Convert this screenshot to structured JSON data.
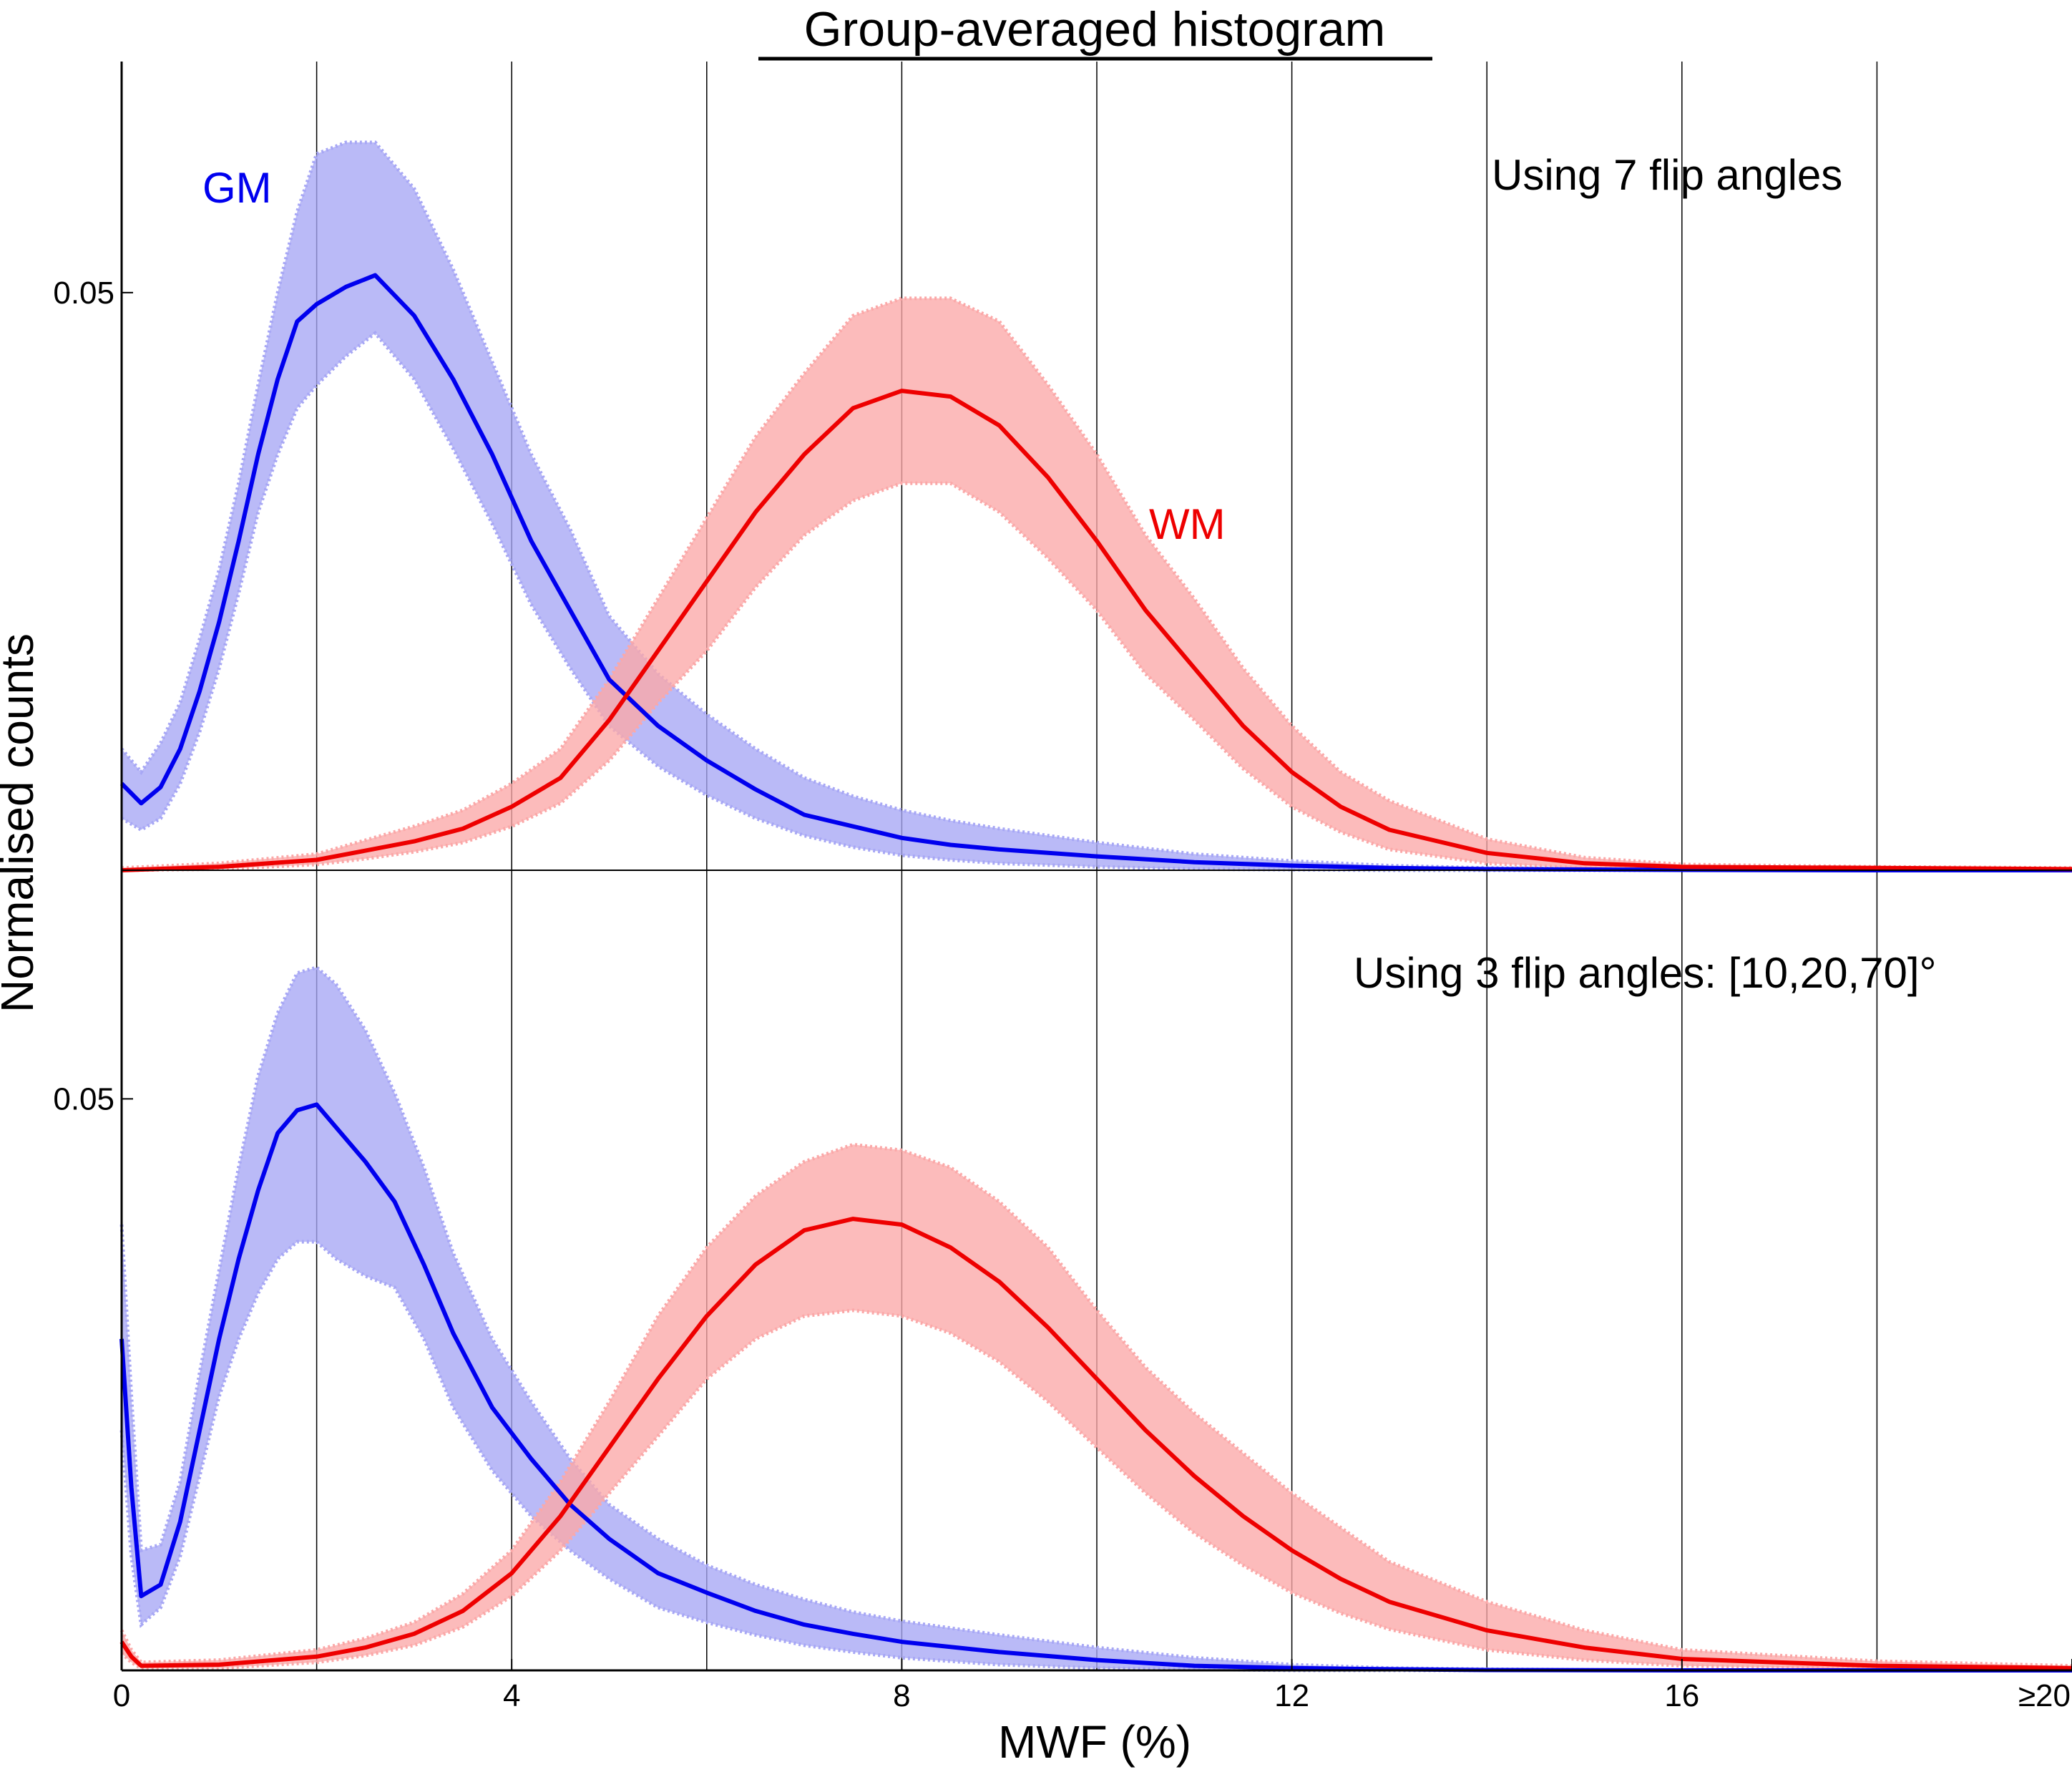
{
  "chart_data": {
    "type": "area",
    "title": "Group-averaged histogram",
    "xlabel": "MWF (%)",
    "ylabel": "Normalised counts",
    "xlim": [
      0,
      20
    ],
    "x_ticks": [
      {
        "value": 0,
        "label": "0"
      },
      {
        "value": 4,
        "label": "4"
      },
      {
        "value": 8,
        "label": "8"
      },
      {
        "value": 12,
        "label": "12"
      },
      {
        "value": 16,
        "label": "16"
      },
      {
        "value": 20,
        "label": "≥20"
      }
    ],
    "x_gridlines": [
      2,
      4,
      6,
      8,
      10,
      12,
      14,
      16,
      18
    ],
    "colors": {
      "GM": "#0000ee",
      "GM_band": "#a7a7f5",
      "WM": "#ee0000",
      "WM_band": "#fba8a8"
    },
    "panels": [
      {
        "annotation": "Using 7 flip angles",
        "ylim": [
          0,
          0.07
        ],
        "y_ticks": [
          {
            "value": 0.05,
            "label": "0.05"
          }
        ],
        "series": [
          {
            "name": "GM",
            "color": "#0000ee",
            "x": [
              0,
              0.2,
              0.4,
              0.6,
              0.8,
              1.0,
              1.2,
              1.4,
              1.6,
              1.8,
              2.0,
              2.3,
              2.6,
              3.0,
              3.4,
              3.8,
              4.2,
              4.6,
              5.0,
              5.5,
              6.0,
              6.5,
              7.0,
              7.5,
              8.0,
              8.5,
              9.0,
              10,
              11,
              12,
              13,
              14,
              16,
              18,
              20
            ],
            "values": [
              0.0075,
              0.0058,
              0.0072,
              0.0105,
              0.0155,
              0.0215,
              0.0285,
              0.036,
              0.0425,
              0.0475,
              0.049,
              0.0505,
              0.0515,
              0.048,
              0.0425,
              0.036,
              0.0285,
              0.0225,
              0.0165,
              0.0125,
              0.0095,
              0.007,
              0.0048,
              0.0038,
              0.0028,
              0.0022,
              0.0018,
              0.0012,
              0.0007,
              0.0004,
              0.0002,
              0.0001,
              3e-05,
              0.0,
              0.0
            ],
            "lower": [
              0.0045,
              0.0035,
              0.0045,
              0.0075,
              0.012,
              0.0175,
              0.024,
              0.031,
              0.036,
              0.04,
              0.042,
              0.0445,
              0.0465,
              0.0425,
              0.0365,
              0.03,
              0.023,
              0.0175,
              0.0125,
              0.009,
              0.0065,
              0.0045,
              0.003,
              0.002,
              0.0013,
              0.0009,
              0.0006,
              0.0003,
              0.0001,
              5e-05,
              0.0,
              0.0,
              0.0,
              0.0,
              0.0
            ],
            "upper": [
              0.0105,
              0.0085,
              0.011,
              0.0145,
              0.02,
              0.026,
              0.0335,
              0.042,
              0.05,
              0.057,
              0.062,
              0.063,
              0.063,
              0.059,
              0.052,
              0.044,
              0.036,
              0.0295,
              0.022,
              0.017,
              0.0135,
              0.0105,
              0.008,
              0.0064,
              0.0052,
              0.0043,
              0.0036,
              0.0024,
              0.0014,
              0.0008,
              0.0004,
              0.0002,
              5e-05,
              0.0,
              0.0
            ]
          },
          {
            "name": "WM",
            "color": "#ee0000",
            "x": [
              0,
              1.0,
              2.0,
              2.5,
              3.0,
              3.5,
              4.0,
              4.5,
              5.0,
              5.5,
              6.0,
              6.5,
              7.0,
              7.5,
              8.0,
              8.5,
              9.0,
              9.5,
              10.0,
              10.5,
              11.0,
              11.5,
              12.0,
              12.5,
              13.0,
              14.0,
              15.0,
              16.0,
              18.0,
              20.0
            ],
            "values": [
              0.0,
              0.0003,
              0.0009,
              0.0017,
              0.0025,
              0.0036,
              0.0055,
              0.008,
              0.013,
              0.019,
              0.025,
              0.031,
              0.036,
              0.04,
              0.0415,
              0.041,
              0.0385,
              0.034,
              0.0285,
              0.0225,
              0.0175,
              0.0125,
              0.0085,
              0.0055,
              0.0035,
              0.0015,
              0.0006,
              0.0003,
              0.0002,
              0.0001
            ],
            "lower": [
              0.0,
              0.0001,
              0.0005,
              0.001,
              0.0016,
              0.0024,
              0.0038,
              0.0058,
              0.0095,
              0.0145,
              0.019,
              0.0245,
              0.029,
              0.032,
              0.0335,
              0.0335,
              0.031,
              0.027,
              0.0225,
              0.017,
              0.013,
              0.0088,
              0.0055,
              0.0033,
              0.0018,
              0.0006,
              0.0002,
              0.0001,
              5e-05,
              0.0
            ],
            "upper": [
              0.0002,
              0.0006,
              0.0014,
              0.0026,
              0.0038,
              0.0052,
              0.0075,
              0.0105,
              0.0165,
              0.0235,
              0.0305,
              0.0375,
              0.043,
              0.048,
              0.0495,
              0.0495,
              0.0475,
              0.042,
              0.036,
              0.029,
              0.0235,
              0.0175,
              0.0125,
              0.0085,
              0.006,
              0.0027,
              0.0011,
              0.0005,
              0.0003,
              0.0002
            ]
          }
        ]
      },
      {
        "annotation": "Using 3 flip angles: [10,20,70]°",
        "ylim": [
          0,
          0.07
        ],
        "y_ticks": [
          {
            "value": 0.05,
            "label": "0.05"
          }
        ],
        "series": [
          {
            "name": "GM",
            "color": "#0000ee",
            "x": [
              0,
              0.1,
              0.2,
              0.4,
              0.6,
              0.8,
              1.0,
              1.2,
              1.4,
              1.6,
              1.8,
              2.0,
              2.2,
              2.5,
              2.8,
              3.1,
              3.4,
              3.8,
              4.2,
              4.6,
              5.0,
              5.5,
              6.0,
              6.5,
              7.0,
              7.5,
              8.0,
              9.0,
              10,
              11,
              12,
              13,
              14,
              16,
              18,
              20
            ],
            "values": [
              0.029,
              0.016,
              0.0065,
              0.0075,
              0.013,
              0.021,
              0.029,
              0.036,
              0.042,
              0.047,
              0.049,
              0.0495,
              0.0475,
              0.0445,
              0.041,
              0.0355,
              0.0295,
              0.023,
              0.0185,
              0.0145,
              0.0115,
              0.0085,
              0.0068,
              0.0052,
              0.004,
              0.0032,
              0.0025,
              0.0016,
              0.0009,
              0.0004,
              0.0002,
              0.0001,
              3e-05,
              0.0,
              0.0,
              0.0
            ],
            "lower": [
              0.021,
              0.01,
              0.004,
              0.0055,
              0.01,
              0.017,
              0.024,
              0.029,
              0.033,
              0.036,
              0.0375,
              0.0375,
              0.036,
              0.0345,
              0.0335,
              0.029,
              0.023,
              0.0175,
              0.0135,
              0.0105,
              0.008,
              0.0055,
              0.0042,
              0.0031,
              0.0022,
              0.0016,
              0.0011,
              0.0005,
              0.0002,
              0.0001,
              0.0,
              0.0,
              0.0,
              0.0,
              0.0,
              0.0
            ],
            "upper": [
              0.039,
              0.024,
              0.0105,
              0.011,
              0.0165,
              0.026,
              0.035,
              0.044,
              0.052,
              0.0575,
              0.061,
              0.0615,
              0.06,
              0.056,
              0.0505,
              0.044,
              0.0365,
              0.029,
              0.0235,
              0.0185,
              0.0145,
              0.0115,
              0.0092,
              0.0075,
              0.0062,
              0.0051,
              0.0043,
              0.0031,
              0.002,
              0.0011,
              0.0005,
              0.0002,
              0.0001,
              0.0,
              0.0,
              0.0
            ]
          },
          {
            "name": "WM",
            "color": "#ee0000",
            "x": [
              0,
              0.1,
              0.2,
              1.0,
              2.0,
              2.5,
              3.0,
              3.5,
              4.0,
              4.5,
              5.0,
              5.5,
              6.0,
              6.5,
              7.0,
              7.5,
              8.0,
              8.5,
              9.0,
              9.5,
              10.0,
              10.5,
              11.0,
              11.5,
              12.0,
              12.5,
              13.0,
              14.0,
              15.0,
              16.0,
              18.0,
              20.0
            ],
            "values": [
              0.0025,
              0.0012,
              0.0004,
              0.0005,
              0.0012,
              0.002,
              0.0032,
              0.0052,
              0.0085,
              0.0135,
              0.0195,
              0.0255,
              0.031,
              0.0355,
              0.0385,
              0.0395,
              0.039,
              0.037,
              0.034,
              0.03,
              0.0255,
              0.021,
              0.017,
              0.0135,
              0.0105,
              0.008,
              0.006,
              0.0035,
              0.002,
              0.001,
              0.0004,
              0.0002
            ],
            "lower": [
              0.0015,
              0.0007,
              0.0002,
              0.0002,
              0.0007,
              0.0013,
              0.0022,
              0.0038,
              0.0065,
              0.0105,
              0.0155,
              0.0205,
              0.0255,
              0.029,
              0.031,
              0.0315,
              0.031,
              0.0295,
              0.027,
              0.0235,
              0.0195,
              0.0155,
              0.012,
              0.0092,
              0.0068,
              0.005,
              0.0036,
              0.0018,
              0.0009,
              0.0004,
              0.0001,
              0.0
            ],
            "upper": [
              0.0035,
              0.0018,
              0.0007,
              0.0009,
              0.0018,
              0.0028,
              0.0042,
              0.0067,
              0.0105,
              0.0165,
              0.0235,
              0.031,
              0.037,
              0.0415,
              0.0445,
              0.046,
              0.0455,
              0.044,
              0.041,
              0.037,
              0.0315,
              0.0265,
              0.0225,
              0.019,
              0.0155,
              0.0125,
              0.0095,
              0.006,
              0.0035,
              0.0018,
              0.0008,
              0.0004
            ]
          }
        ]
      }
    ]
  }
}
